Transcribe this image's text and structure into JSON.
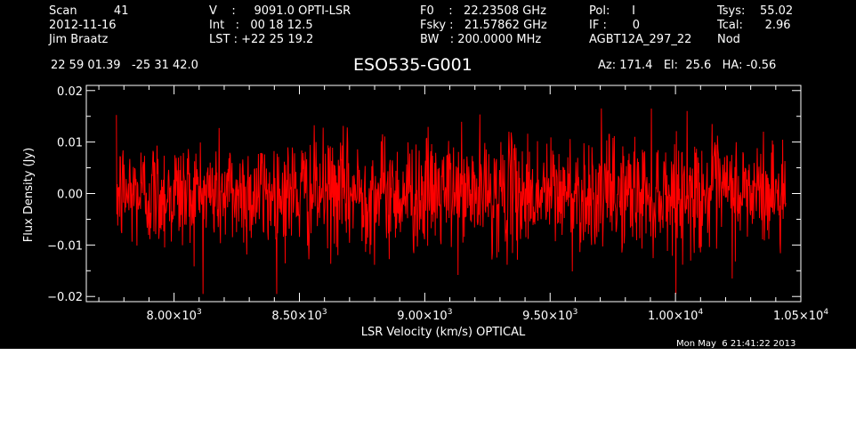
{
  "header": {
    "col1": [
      "Scan          41",
      "2012-11-16",
      "Jim Braatz"
    ],
    "col2": [
      "V    :     9091.0 OPTI-LSR",
      "Int   :   00 18 12.5",
      "LST : +22 25 19.2"
    ],
    "col3": [
      "F0    :   22.23508 GHz",
      "Fsky :   21.57862 GHz",
      "BW   : 200.0000 MHz"
    ],
    "col4": [
      "Pol:      I",
      "IF :       0",
      "AGBT12A_297_22"
    ],
    "col5": [
      "Tsys:    55.02",
      "Tcal:      2.96",
      "Nod"
    ],
    "coords": "22 59 01.39   -25 31 42.0",
    "source": "ESO535-G001",
    "pointing": "Az: 171.4   El:  25.6   HA: -0.56",
    "timestamp": "Mon May  6 21:41:22 2013"
  },
  "chart_data": {
    "type": "line",
    "xlabel": "LSR Velocity (km/s) OPTICAL",
    "ylabel": "Flux Density (Jy)",
    "xlim": [
      7650,
      10500
    ],
    "ylim": [
      -0.021,
      0.021
    ],
    "data_x_range": [
      7770,
      10440
    ],
    "xticks": [
      8000,
      8500,
      9000,
      9500,
      10000,
      10500
    ],
    "xtick_labels": [
      {
        "mantissa": "8.00×10",
        "exp": "3"
      },
      {
        "mantissa": "8.50×10",
        "exp": "3"
      },
      {
        "mantissa": "9.00×10",
        "exp": "3"
      },
      {
        "mantissa": "9.50×10",
        "exp": "3"
      },
      {
        "mantissa": "1.00×10",
        "exp": "4"
      },
      {
        "mantissa": "1.05×10",
        "exp": "4"
      }
    ],
    "yticks": [
      -0.02,
      -0.01,
      0.0,
      0.01,
      0.02
    ],
    "ytick_labels": [
      "−0.02",
      "−0.01",
      "0.00",
      "0.01",
      "0.02"
    ],
    "noise_rms": 0.0055,
    "n_points": 1500,
    "line_color": "#ff0000",
    "axis_color": "#ffffff",
    "background": "#000000",
    "grid": false,
    "legend": "none"
  }
}
